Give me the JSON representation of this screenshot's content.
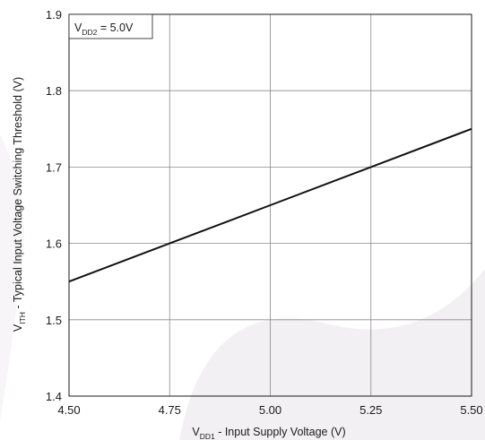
{
  "chart_data": {
    "type": "line",
    "title": "",
    "xlabel": {
      "main": "V",
      "sub": "DD1",
      "rest": " - Input Supply Voltage (V)"
    },
    "ylabel": {
      "main": "V",
      "sub": "ITH",
      "rest": " - Typical Input Voltage Switching Threshold (V)"
    },
    "xlim": [
      4.5,
      5.5
    ],
    "ylim": [
      1.4,
      1.9
    ],
    "x_ticks": [
      "4.50",
      "4.75",
      "5.00",
      "5.25",
      "5.50"
    ],
    "y_ticks": [
      "1.4",
      "1.5",
      "1.6",
      "1.7",
      "1.8",
      "1.9"
    ],
    "grid": true,
    "annotation": {
      "main": "V",
      "sub": "DD2",
      "rest": " = 5.0V"
    },
    "series": [
      {
        "x": [
          4.5,
          4.75,
          5.0,
          5.25,
          5.5
        ],
        "y": [
          1.55,
          1.6,
          1.65,
          1.7,
          1.75
        ]
      }
    ]
  }
}
